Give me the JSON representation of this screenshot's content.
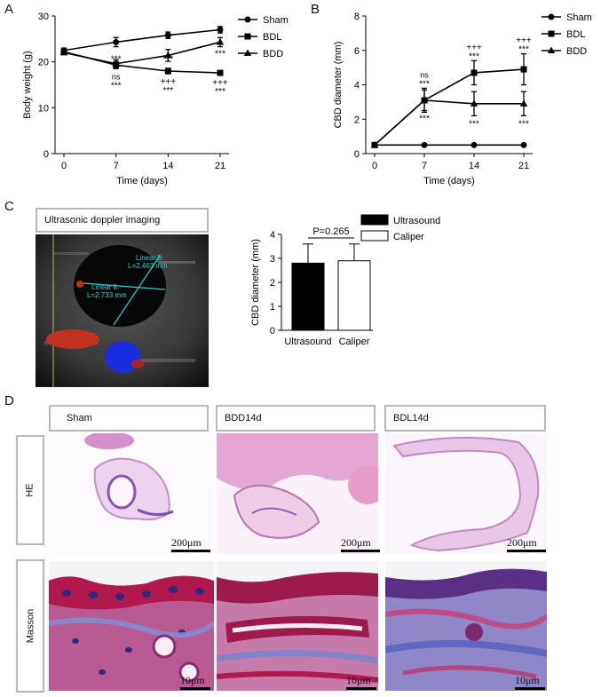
{
  "panels": {
    "A": "A",
    "B": "B",
    "C": "C",
    "D": "D"
  },
  "chart_data": [
    {
      "type": "line",
      "panel": "A",
      "xlabel": "Time (days)",
      "ylabel": "Body weight (g)",
      "x": [
        0,
        7,
        14,
        21
      ],
      "xlim": [
        0,
        21
      ],
      "ylim": [
        0,
        30
      ],
      "yticks": [
        0,
        10,
        20,
        30
      ],
      "series": [
        {
          "name": "Sham",
          "marker": "circle",
          "values": [
            22.5,
            24.3,
            25.8,
            27.0
          ],
          "errors": [
            0.5,
            1.0,
            0.7,
            0.7
          ]
        },
        {
          "name": "BDL",
          "marker": "square",
          "values": [
            22.2,
            19.3,
            18.0,
            17.6
          ],
          "errors": [
            0.4,
            0.8,
            0.6,
            0.4
          ]
        },
        {
          "name": "BDD",
          "marker": "triangle",
          "values": [
            22.0,
            19.6,
            21.4,
            24.3
          ],
          "errors": [
            0.4,
            0.9,
            1.3,
            1.0
          ]
        }
      ],
      "annotations": [
        {
          "x": 7,
          "text": "***",
          "level": "above"
        },
        {
          "x": 7,
          "text": "ns",
          "level": "below1"
        },
        {
          "x": 7,
          "text": "***",
          "level": "below2"
        },
        {
          "x": 14,
          "text": "***",
          "level": "above"
        },
        {
          "x": 14,
          "text": "+++",
          "level": "below1"
        },
        {
          "x": 14,
          "text": "***",
          "level": "below2"
        },
        {
          "x": 21,
          "text": "***",
          "level": "above"
        },
        {
          "x": 21,
          "text": "+++",
          "level": "below1"
        },
        {
          "x": 21,
          "text": "***",
          "level": "below2"
        }
      ],
      "legend": "right"
    },
    {
      "type": "line",
      "panel": "B",
      "xlabel": "Time (days)",
      "ylabel": "CBD diameter (mm)",
      "x": [
        0,
        7,
        14,
        21
      ],
      "xlim": [
        0,
        21
      ],
      "ylim": [
        0,
        8
      ],
      "yticks": [
        0,
        2,
        4,
        6,
        8
      ],
      "series": [
        {
          "name": "Sham",
          "marker": "circle",
          "values": [
            0.5,
            0.5,
            0.5,
            0.5
          ],
          "errors": [
            0,
            0,
            0,
            0
          ]
        },
        {
          "name": "BDL",
          "marker": "square",
          "values": [
            0.5,
            3.1,
            4.7,
            4.9
          ],
          "errors": [
            0,
            0.7,
            0.7,
            0.9
          ]
        },
        {
          "name": "BDD",
          "marker": "triangle",
          "values": [
            0.5,
            3.1,
            2.9,
            2.9
          ],
          "errors": [
            0,
            0.6,
            0.7,
            0.7
          ]
        }
      ],
      "annotations": [
        {
          "x": 7,
          "text": "ns",
          "level": "top1"
        },
        {
          "x": 7,
          "text": "***",
          "level": "top2"
        },
        {
          "x": 7,
          "text": "***",
          "level": "bottom"
        },
        {
          "x": 14,
          "text": "+++",
          "level": "top1"
        },
        {
          "x": 14,
          "text": "***",
          "level": "top2"
        },
        {
          "x": 14,
          "text": "***",
          "level": "bottom"
        },
        {
          "x": 21,
          "text": "+++",
          "level": "top1"
        },
        {
          "x": 21,
          "text": "***",
          "level": "top2"
        },
        {
          "x": 21,
          "text": "***",
          "level": "bottom"
        }
      ],
      "legend": "right"
    },
    {
      "type": "bar",
      "panel": "C",
      "ylabel": "CBD diameter (mm)",
      "categories": [
        "Ultrasound",
        "Caliper"
      ],
      "values": [
        2.8,
        2.9
      ],
      "errors": [
        0.8,
        0.7
      ],
      "colors": [
        "#000000",
        "#ffffff"
      ],
      "ylim": [
        0,
        4
      ],
      "yticks": [
        0,
        1,
        2,
        3,
        4
      ],
      "annotation": "P=0.265",
      "legend": "top-right",
      "legend_entries": [
        "Ultrasound",
        "Caliper"
      ]
    }
  ],
  "ultrasound": {
    "title": "Ultrasonic doppler imaging",
    "measure1": "Linear 9:",
    "measure1_value": "L=2.463 mm",
    "measure2": "Linear 8:",
    "measure2_value": "L=2.733 mm"
  },
  "histology": {
    "columns": [
      "Sham",
      "BDD14d",
      "BDL14d"
    ],
    "rows": [
      "HE",
      "Masson"
    ],
    "scale_he": "200μm",
    "scale_masson": "10μm"
  }
}
